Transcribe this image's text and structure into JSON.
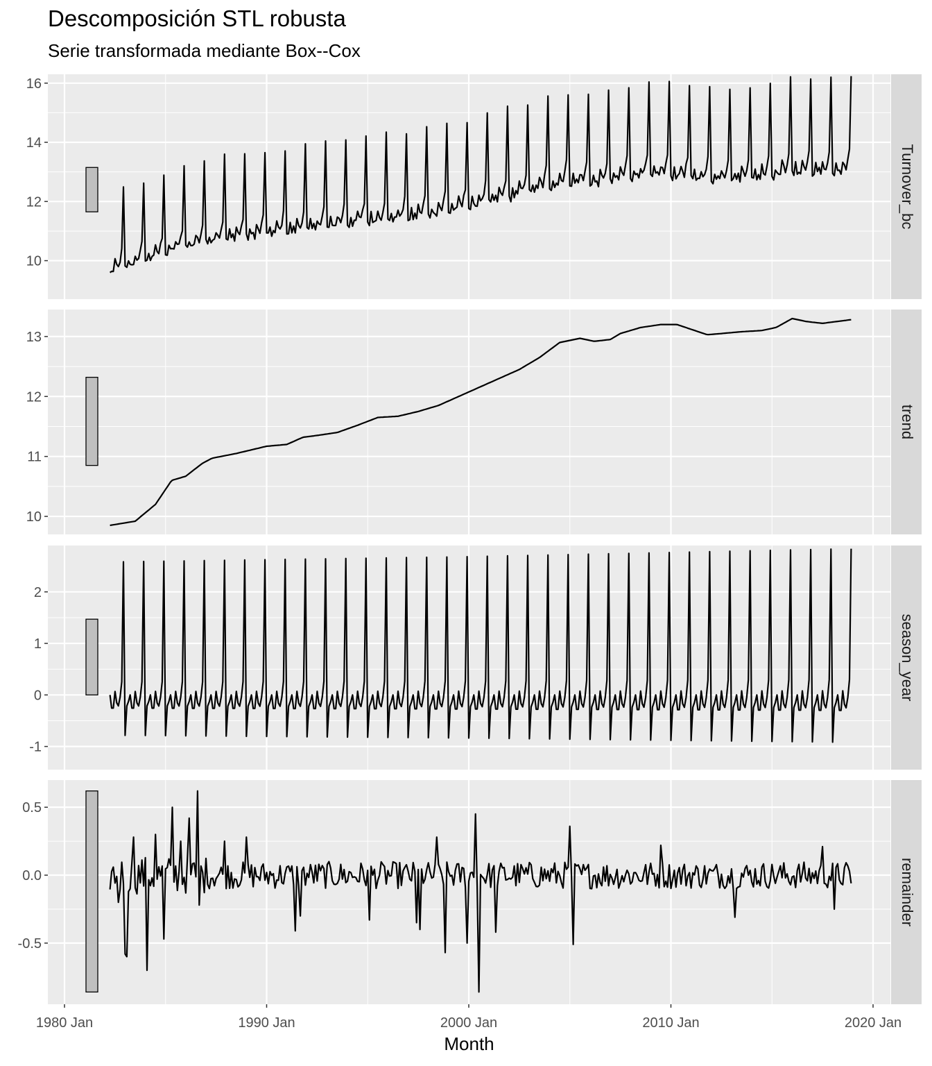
{
  "chart_data": {
    "type": "line",
    "title": "Descomposición STL robusta",
    "subtitle": "Serie transformada mediante Box--Cox",
    "xlabel": "Month",
    "x_range": [
      "1982 Apr",
      "2018 Dec"
    ],
    "x_ticks": [
      "1980 Jan",
      "1990 Jan",
      "2000 Jan",
      "2010 Jan",
      "2020 Jan"
    ],
    "grid": true,
    "panels": [
      {
        "name": "Turnover_bc",
        "ylim": [
          8.7,
          16.3
        ],
        "y_ticks": [
          10,
          12,
          14,
          16
        ],
        "scale_bar": [
          11.65,
          13.15
        ],
        "series": {
          "start": 1982.25,
          "step_months": 1,
          "base_trend": [
            [
              1982.25,
              9.85
            ],
            [
              1985.5,
              10.65
            ],
            [
              1987.5,
              11.0
            ],
            [
              1990,
              11.17
            ],
            [
              1992,
              11.35
            ],
            [
              1995,
              11.62
            ],
            [
              1997,
              11.72
            ],
            [
              2000,
              12.1
            ],
            [
              2002,
              12.45
            ],
            [
              2004.8,
              12.95
            ],
            [
              2006.5,
              12.92
            ],
            [
              2008,
              13.15
            ],
            [
              2010,
              13.2
            ],
            [
              2011.5,
              13.05
            ],
            [
              2014,
              13.1
            ],
            [
              2016,
              13.3
            ],
            [
              2018.9,
              13.28
            ]
          ],
          "seasonal_amplitude": [
            [
              1982.25,
              0.95
            ],
            [
              2000,
              1.05
            ],
            [
              2018.9,
              1.12
            ]
          ],
          "seasonal_pattern_by_month": [
            -0.3,
            -0.35,
            -0.05,
            -0.3,
            -0.2,
            -0.3,
            0.05,
            -0.1,
            -0.2,
            0.05,
            0.35,
            2.55
          ],
          "values_by_year": [
            {
              "year": 1982,
              "dec": 11.9,
              "min": 9.5
            },
            {
              "year": 1986,
              "dec": 13.1,
              "min": 9.65
            },
            {
              "year": 1990,
              "dec": 13.9,
              "min": 10.0
            },
            {
              "year": 1995,
              "dec": 14.6,
              "min": 10.55
            },
            {
              "year": 2000,
              "dec": 14.85,
              "min": 11.0
            },
            {
              "year": 2005,
              "dec": 15.5,
              "min": 11.9
            },
            {
              "year": 2010,
              "dec": 15.75,
              "min": 11.95
            },
            {
              "year": 2015,
              "dec": 15.95,
              "min": 11.9
            },
            {
              "year": 2018,
              "dec": 15.8,
              "min": 11.9
            }
          ]
        }
      },
      {
        "name": "trend",
        "ylim": [
          9.7,
          13.45
        ],
        "y_ticks": [
          10,
          11,
          12,
          13
        ],
        "scale_bar": [
          10.85,
          12.32
        ],
        "series": {
          "points": [
            [
              1982.25,
              9.85
            ],
            [
              1983.5,
              9.92
            ],
            [
              1984.5,
              10.2
            ],
            [
              1985.3,
              10.6
            ],
            [
              1986.0,
              10.67
            ],
            [
              1986.8,
              10.88
            ],
            [
              1987.3,
              10.97
            ],
            [
              1988.5,
              11.05
            ],
            [
              1990.0,
              11.17
            ],
            [
              1991.0,
              11.2
            ],
            [
              1991.8,
              11.32
            ],
            [
              1992.5,
              11.35
            ],
            [
              1993.5,
              11.4
            ],
            [
              1994.5,
              11.52
            ],
            [
              1995.5,
              11.65
            ],
            [
              1996.5,
              11.67
            ],
            [
              1997.5,
              11.75
            ],
            [
              1998.5,
              11.85
            ],
            [
              1999.5,
              12.0
            ],
            [
              2000.5,
              12.15
            ],
            [
              2001.5,
              12.3
            ],
            [
              2002.5,
              12.45
            ],
            [
              2003.5,
              12.65
            ],
            [
              2004.5,
              12.9
            ],
            [
              2005.5,
              12.97
            ],
            [
              2006.2,
              12.92
            ],
            [
              2007.0,
              12.95
            ],
            [
              2007.5,
              13.05
            ],
            [
              2008.5,
              13.15
            ],
            [
              2009.5,
              13.2
            ],
            [
              2010.3,
              13.2
            ],
            [
              2011.0,
              13.12
            ],
            [
              2011.8,
              13.03
            ],
            [
              2012.5,
              13.05
            ],
            [
              2013.5,
              13.08
            ],
            [
              2014.5,
              13.1
            ],
            [
              2015.2,
              13.15
            ],
            [
              2016.0,
              13.3
            ],
            [
              2016.7,
              13.25
            ],
            [
              2017.5,
              13.22
            ],
            [
              2018.9,
              13.28
            ]
          ]
        }
      },
      {
        "name": "season_year",
        "ylim": [
          -1.45,
          2.9
        ],
        "y_ticks": [
          -1,
          0,
          1,
          2
        ],
        "scale_bar": [
          0.0,
          1.47
        ],
        "series": {
          "start": 1982.25,
          "step_months": 1,
          "pattern_by_month": [
            -0.92,
            -0.25,
            -0.15,
            0.0,
            -0.3,
            -0.3,
            0.08,
            -0.18,
            -0.25,
            -0.05,
            0.3,
            2.58
          ],
          "amplitude_growth": [
            [
              1982.25,
              1.0
            ],
            [
              2000,
              1.04
            ],
            [
              2018.9,
              1.1
            ]
          ]
        }
      },
      {
        "name": "remainder",
        "ylim": [
          -0.95,
          0.7
        ],
        "y_ticks": [
          -0.5,
          0.0,
          0.5
        ],
        "y_tick_labels": [
          "-0.5",
          "0.0",
          "0.5"
        ],
        "scale_bar": [
          -0.86,
          0.62
        ],
        "series": {
          "start": 1982.25,
          "step_months": 1,
          "typical_spread": 0.1,
          "notable_points": [
            [
              1982.7,
              -0.2
            ],
            [
              1983.0,
              -0.58
            ],
            [
              1983.1,
              -0.6
            ],
            [
              1983.4,
              0.28
            ],
            [
              1984.05,
              -0.7
            ],
            [
              1984.5,
              0.3
            ],
            [
              1984.9,
              -0.47
            ],
            [
              1985.3,
              0.5
            ],
            [
              1985.75,
              0.25
            ],
            [
              1986.2,
              0.42
            ],
            [
              1986.55,
              0.62
            ],
            [
              1986.65,
              -0.22
            ],
            [
              1987.9,
              0.25
            ],
            [
              1989.0,
              0.28
            ],
            [
              1991.4,
              -0.41
            ],
            [
              1991.7,
              -0.3
            ],
            [
              1995.1,
              -0.33
            ],
            [
              1997.4,
              -0.35
            ],
            [
              1997.6,
              -0.4
            ],
            [
              1998.4,
              0.28
            ],
            [
              1998.8,
              -0.57
            ],
            [
              1999.9,
              -0.5
            ],
            [
              2000.3,
              0.45
            ],
            [
              2000.5,
              -0.86
            ],
            [
              2001.3,
              -0.42
            ],
            [
              2005.0,
              0.36
            ],
            [
              2005.15,
              -0.51
            ],
            [
              2009.5,
              0.22
            ],
            [
              2013.2,
              -0.31
            ],
            [
              2017.5,
              0.21
            ],
            [
              2018.1,
              -0.25
            ],
            [
              2018.9,
              -0.06
            ]
          ]
        }
      }
    ]
  }
}
